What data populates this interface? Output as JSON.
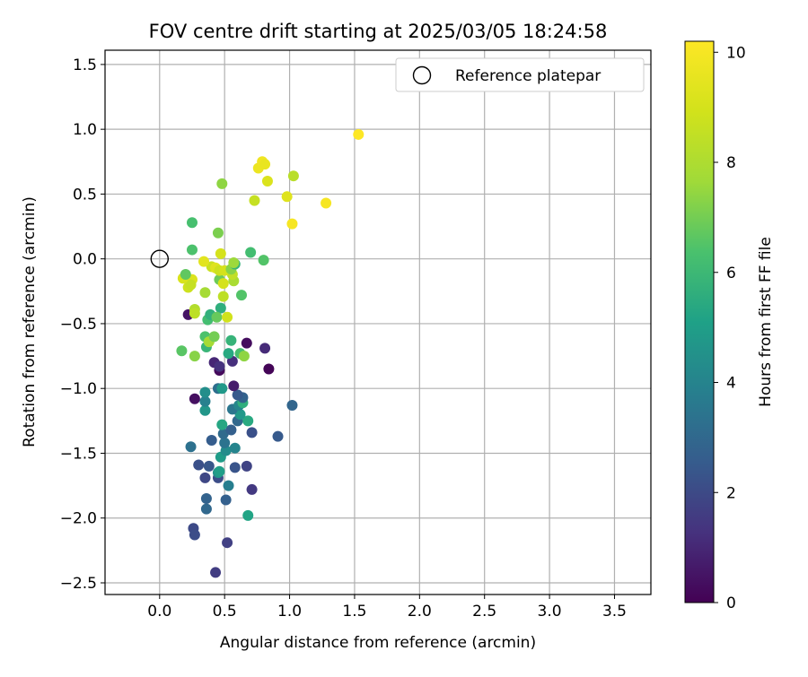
{
  "chart_data": {
    "type": "scatter",
    "title": "FOV centre drift starting at 2025/03/05 18:24:58",
    "xlabel": "Angular distance from reference (arcmin)",
    "ylabel": "Rotation from reference (arcmin)",
    "xlim": [
      -0.42,
      3.78
    ],
    "ylim": [
      -2.59,
      1.61
    ],
    "xticks": [
      0.0,
      0.5,
      1.0,
      1.5,
      2.0,
      2.5,
      3.0,
      3.5
    ],
    "xtick_labels": [
      "0.0",
      "0.5",
      "1.0",
      "1.5",
      "2.0",
      "2.5",
      "3.0",
      "3.5"
    ],
    "yticks": [
      -2.5,
      -2.0,
      -1.5,
      -1.0,
      -0.5,
      0.0,
      0.5,
      1.0,
      1.5
    ],
    "ytick_labels": [
      "−2.5",
      "−2.0",
      "−1.5",
      "−1.0",
      "−0.5",
      "0.0",
      "0.5",
      "1.0",
      "1.5"
    ],
    "grid": true,
    "colormap": "viridis",
    "colorbar": {
      "label": "Hours from first FF file",
      "range": [
        0,
        10.2
      ],
      "ticks": [
        0,
        2,
        4,
        6,
        8,
        10
      ],
      "tick_labels": [
        "0",
        "2",
        "4",
        "6",
        "8",
        "10"
      ]
    },
    "legend": {
      "placement": "top-right",
      "entries": [
        {
          "label": "Reference platepar",
          "marker": "open-circle"
        }
      ]
    },
    "reference_point": {
      "x": 0.0,
      "y": 0.0
    },
    "points": [
      {
        "x": 0.43,
        "y": -2.42,
        "c": 1.6
      },
      {
        "x": 0.52,
        "y": -2.19,
        "c": 1.7
      },
      {
        "x": 0.26,
        "y": -2.08,
        "c": 2.0
      },
      {
        "x": 0.27,
        "y": -2.13,
        "c": 2.1
      },
      {
        "x": 0.36,
        "y": -1.93,
        "c": 3.0
      },
      {
        "x": 0.36,
        "y": -1.85,
        "c": 2.8
      },
      {
        "x": 0.51,
        "y": -1.86,
        "c": 2.7
      },
      {
        "x": 0.68,
        "y": -1.98,
        "c": 5.2
      },
      {
        "x": 0.71,
        "y": -1.78,
        "c": 1.5
      },
      {
        "x": 0.45,
        "y": -1.69,
        "c": 2.1
      },
      {
        "x": 0.35,
        "y": -1.69,
        "c": 1.9
      },
      {
        "x": 0.53,
        "y": -1.75,
        "c": 3.8
      },
      {
        "x": 0.3,
        "y": -1.59,
        "c": 2.2
      },
      {
        "x": 0.38,
        "y": -1.6,
        "c": 2.4
      },
      {
        "x": 0.45,
        "y": -1.65,
        "c": 4.5
      },
      {
        "x": 0.46,
        "y": -1.64,
        "c": 5.0
      },
      {
        "x": 0.58,
        "y": -1.61,
        "c": 2.3
      },
      {
        "x": 0.67,
        "y": -1.6,
        "c": 1.8
      },
      {
        "x": 0.24,
        "y": -1.45,
        "c": 3.3
      },
      {
        "x": 0.47,
        "y": -1.53,
        "c": 4.9
      },
      {
        "x": 0.51,
        "y": -1.48,
        "c": 4.3
      },
      {
        "x": 0.5,
        "y": -1.42,
        "c": 3.4
      },
      {
        "x": 0.58,
        "y": -1.46,
        "c": 4.0
      },
      {
        "x": 0.4,
        "y": -1.4,
        "c": 2.6
      },
      {
        "x": 0.49,
        "y": -1.35,
        "c": 3.1
      },
      {
        "x": 0.55,
        "y": -1.32,
        "c": 2.7
      },
      {
        "x": 0.48,
        "y": -1.28,
        "c": 5.3
      },
      {
        "x": 0.71,
        "y": -1.34,
        "c": 2.2
      },
      {
        "x": 0.91,
        "y": -1.37,
        "c": 2.5
      },
      {
        "x": 1.02,
        "y": -1.13,
        "c": 2.9
      },
      {
        "x": 0.6,
        "y": -1.25,
        "c": 3.0
      },
      {
        "x": 0.68,
        "y": -1.25,
        "c": 5.4
      },
      {
        "x": 0.62,
        "y": -1.2,
        "c": 4.8
      },
      {
        "x": 0.56,
        "y": -1.16,
        "c": 3.5
      },
      {
        "x": 0.61,
        "y": -1.13,
        "c": 4.1
      },
      {
        "x": 0.64,
        "y": -1.11,
        "c": 5.6
      },
      {
        "x": 0.64,
        "y": -1.07,
        "c": 2.8
      },
      {
        "x": 0.6,
        "y": -1.05,
        "c": 2.5
      },
      {
        "x": 0.35,
        "y": -1.17,
        "c": 4.7
      },
      {
        "x": 0.35,
        "y": -1.1,
        "c": 3.9
      },
      {
        "x": 0.35,
        "y": -1.03,
        "c": 4.4
      },
      {
        "x": 0.27,
        "y": -1.08,
        "c": 0.4
      },
      {
        "x": 0.45,
        "y": -1.0,
        "c": 3.2
      },
      {
        "x": 0.48,
        "y": -1.0,
        "c": 4.8
      },
      {
        "x": 0.57,
        "y": -0.98,
        "c": 0.7
      },
      {
        "x": 0.46,
        "y": -0.86,
        "c": 0.2
      },
      {
        "x": 0.42,
        "y": -0.8,
        "c": 1.0
      },
      {
        "x": 0.46,
        "y": -0.83,
        "c": 1.3
      },
      {
        "x": 0.56,
        "y": -0.79,
        "c": 1.2
      },
      {
        "x": 0.84,
        "y": -0.85,
        "c": 0.1
      },
      {
        "x": 0.81,
        "y": -0.69,
        "c": 1.1
      },
      {
        "x": 0.67,
        "y": -0.65,
        "c": 0.3
      },
      {
        "x": 0.53,
        "y": -0.73,
        "c": 5.4
      },
      {
        "x": 0.36,
        "y": -0.68,
        "c": 5.9
      },
      {
        "x": 0.62,
        "y": -0.73,
        "c": 6.3
      },
      {
        "x": 0.65,
        "y": -0.75,
        "c": 7.4
      },
      {
        "x": 0.17,
        "y": -0.71,
        "c": 6.6
      },
      {
        "x": 0.27,
        "y": -0.75,
        "c": 7.3
      },
      {
        "x": 0.35,
        "y": -0.6,
        "c": 6.4
      },
      {
        "x": 0.55,
        "y": -0.63,
        "c": 5.8
      },
      {
        "x": 0.38,
        "y": -0.64,
        "c": 7.8
      },
      {
        "x": 0.42,
        "y": -0.6,
        "c": 7.0
      },
      {
        "x": 0.22,
        "y": -0.43,
        "c": 0.5
      },
      {
        "x": 0.37,
        "y": -0.47,
        "c": 6.2
      },
      {
        "x": 0.39,
        "y": -0.43,
        "c": 5.7
      },
      {
        "x": 0.47,
        "y": -0.38,
        "c": 5.6
      },
      {
        "x": 0.44,
        "y": -0.45,
        "c": 6.8
      },
      {
        "x": 0.27,
        "y": -0.39,
        "c": 8.1
      },
      {
        "x": 0.27,
        "y": -0.42,
        "c": 8.4
      },
      {
        "x": 0.52,
        "y": -0.45,
        "c": 8.9
      },
      {
        "x": 0.63,
        "y": -0.28,
        "c": 6.5
      },
      {
        "x": 0.35,
        "y": -0.26,
        "c": 7.8
      },
      {
        "x": 0.49,
        "y": -0.29,
        "c": 8.4
      },
      {
        "x": 0.22,
        "y": -0.22,
        "c": 8.8
      },
      {
        "x": 0.25,
        "y": -0.16,
        "c": 9.2
      },
      {
        "x": 0.24,
        "y": -0.2,
        "c": 8.6
      },
      {
        "x": 0.18,
        "y": -0.15,
        "c": 9.1
      },
      {
        "x": 0.2,
        "y": -0.12,
        "c": 6.7
      },
      {
        "x": 0.46,
        "y": -0.16,
        "c": 6.9
      },
      {
        "x": 0.49,
        "y": -0.19,
        "c": 9.0
      },
      {
        "x": 0.57,
        "y": -0.17,
        "c": 7.9
      },
      {
        "x": 0.56,
        "y": -0.12,
        "c": 8.5
      },
      {
        "x": 0.4,
        "y": -0.06,
        "c": 8.7
      },
      {
        "x": 0.43,
        "y": -0.07,
        "c": 9.3
      },
      {
        "x": 0.46,
        "y": -0.09,
        "c": 8.8
      },
      {
        "x": 0.5,
        "y": -0.09,
        "c": 9.0
      },
      {
        "x": 0.55,
        "y": -0.08,
        "c": 7.3
      },
      {
        "x": 0.34,
        "y": -0.02,
        "c": 9.4
      },
      {
        "x": 0.58,
        "y": -0.04,
        "c": 5.8
      },
      {
        "x": 0.57,
        "y": -0.03,
        "c": 7.6
      },
      {
        "x": 0.25,
        "y": 0.07,
        "c": 6.4
      },
      {
        "x": 0.47,
        "y": 0.04,
        "c": 9.0
      },
      {
        "x": 0.7,
        "y": 0.05,
        "c": 6.2
      },
      {
        "x": 0.8,
        "y": -0.01,
        "c": 6.5
      },
      {
        "x": 0.25,
        "y": 0.28,
        "c": 6.3
      },
      {
        "x": 0.45,
        "y": 0.2,
        "c": 7.1
      },
      {
        "x": 0.48,
        "y": 0.58,
        "c": 7.4
      },
      {
        "x": 0.73,
        "y": 0.45,
        "c": 8.6
      },
      {
        "x": 0.98,
        "y": 0.48,
        "c": 9.3
      },
      {
        "x": 1.02,
        "y": 0.27,
        "c": 10.0
      },
      {
        "x": 1.03,
        "y": 0.64,
        "c": 8.3
      },
      {
        "x": 0.83,
        "y": 0.6,
        "c": 9.2
      },
      {
        "x": 0.76,
        "y": 0.7,
        "c": 9.7
      },
      {
        "x": 0.79,
        "y": 0.75,
        "c": 9.8
      },
      {
        "x": 0.81,
        "y": 0.73,
        "c": 9.6
      },
      {
        "x": 1.28,
        "y": 0.43,
        "c": 10.0
      },
      {
        "x": 1.53,
        "y": 0.96,
        "c": 10.2
      }
    ]
  }
}
